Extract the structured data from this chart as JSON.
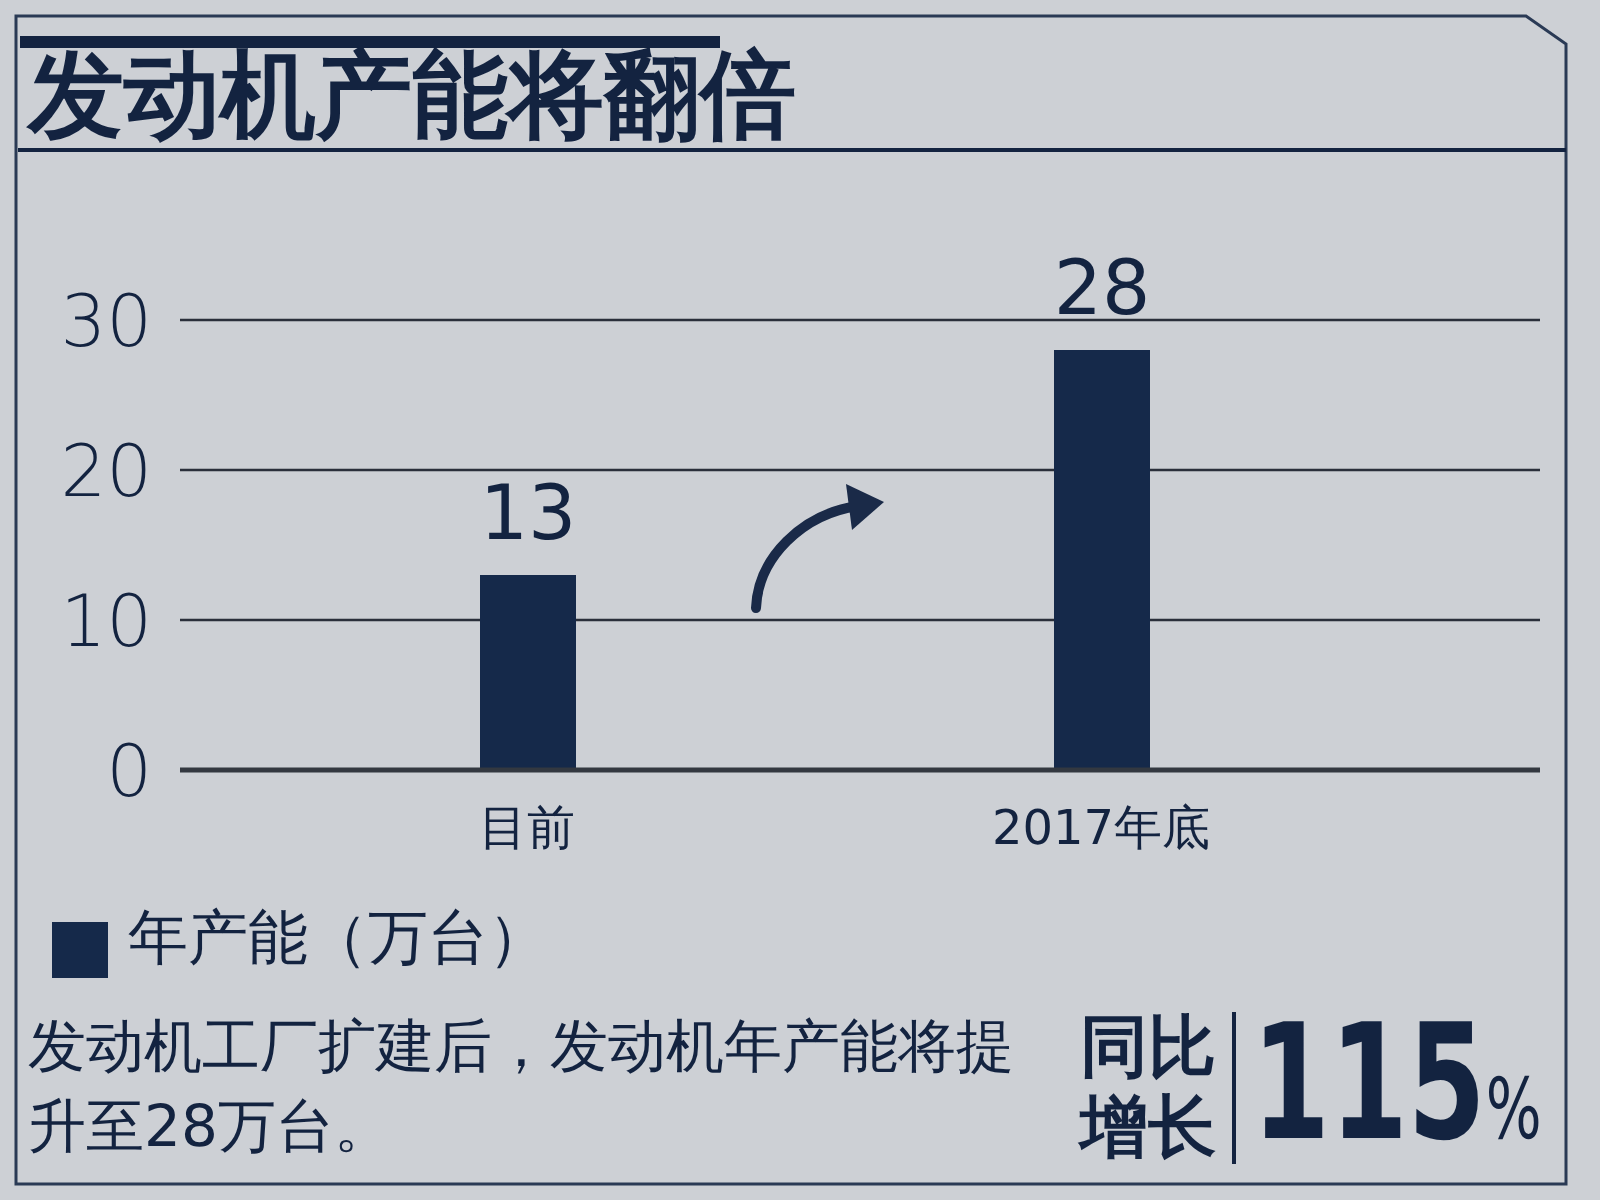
{
  "chart_data": {
    "type": "bar",
    "title": "发动机产能将翻倍",
    "categories": [
      "目前",
      "2017年底"
    ],
    "series": [
      {
        "name": "年产能（万台）",
        "color": "#15294a",
        "values": [
          13,
          28
        ]
      }
    ],
    "ylim": [
      0,
      30
    ],
    "yticks": [
      0,
      10,
      20,
      30
    ],
    "grid": "y",
    "legend": "bottom left",
    "data_labels": true,
    "annotations": [
      "发动机工厂扩建后，发动机年产能将提升至28万台。",
      "同比增长",
      "115%"
    ]
  }
}
